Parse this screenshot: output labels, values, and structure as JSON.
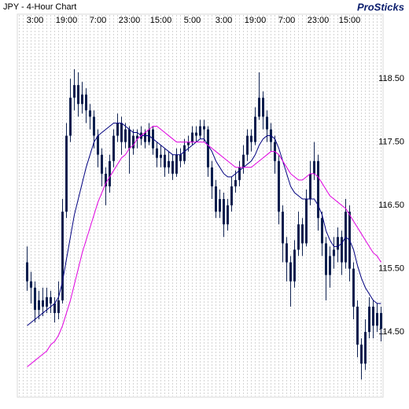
{
  "chart_data": {
    "type": "candlestick",
    "title": "JPY - 4-Hour Chart",
    "source": "ProSticks",
    "categories": [
      null,
      null,
      null,
      null,
      "3:00",
      null,
      null,
      null,
      null,
      null,
      null,
      null,
      "19:00",
      null,
      null,
      null,
      null,
      null,
      null,
      null,
      "7:00",
      null,
      null,
      null,
      null,
      null,
      null,
      null,
      "23:00",
      null,
      null,
      null,
      null,
      null,
      null,
      null,
      "15:00",
      null,
      null,
      null,
      null,
      null,
      null,
      null,
      "5:00",
      null,
      null,
      null,
      null,
      null,
      null,
      null,
      "3:00",
      null,
      null,
      null,
      null,
      null,
      null,
      null,
      "19:00",
      null,
      null,
      null,
      null,
      null,
      null,
      null,
      "7:00",
      null,
      null,
      null,
      null,
      null,
      null,
      null,
      "23:00",
      null,
      null,
      null,
      null,
      null,
      null,
      null,
      "15:00",
      null,
      null,
      null,
      null,
      null,
      null,
      null,
      null
    ],
    "open": [
      null,
      null,
      115.6,
      115.3,
      115.2,
      114.85,
      115.0,
      114.9,
      115.05,
      114.95,
      114.8,
      115.0,
      116.4,
      117.6,
      118.2,
      118.4,
      118.1,
      118.25,
      118.0,
      117.9,
      117.6,
      117.3,
      117.0,
      116.8,
      117.2,
      117.6,
      117.8,
      117.5,
      117.7,
      117.4,
      117.6,
      117.55,
      117.65,
      117.5,
      117.7,
      117.4,
      117.25,
      117.3,
      117.1,
      117.2,
      117.0,
      117.3,
      117.2,
      117.45,
      117.5,
      117.65,
      117.6,
      117.75,
      117.7,
      117.1,
      116.8,
      116.4,
      116.6,
      116.2,
      116.5,
      116.8,
      116.9,
      117.1,
      117.3,
      117.6,
      117.5,
      117.9,
      118.2,
      117.9,
      117.7,
      117.5,
      117.2,
      116.4,
      115.9,
      115.6,
      115.3,
      115.8,
      116.2,
      115.9,
      116.6,
      117.0,
      117.2,
      116.3,
      115.9,
      115.4,
      115.7,
      115.8,
      116.0,
      115.6,
      116.4,
      115.5,
      114.9,
      114.3,
      114.0,
      114.5,
      114.9,
      114.6,
      114.8
    ],
    "high": [
      null,
      null,
      115.85,
      115.45,
      115.3,
      115.15,
      115.2,
      115.2,
      115.15,
      115.05,
      115.3,
      116.6,
      117.8,
      118.5,
      118.65,
      118.6,
      118.45,
      118.35,
      118.1,
      118.0,
      117.7,
      117.4,
      117.1,
      117.3,
      117.7,
      117.95,
      117.9,
      117.8,
      117.75,
      117.7,
      117.7,
      117.75,
      117.7,
      117.8,
      117.75,
      117.5,
      117.45,
      117.4,
      117.35,
      117.3,
      117.4,
      117.4,
      117.55,
      117.6,
      117.75,
      117.75,
      117.85,
      117.85,
      117.75,
      117.2,
      116.9,
      116.75,
      116.7,
      116.6,
      116.95,
      117.05,
      117.2,
      117.45,
      117.7,
      117.7,
      118.05,
      118.6,
      118.3,
      118.0,
      117.8,
      117.6,
      117.3,
      116.5,
      116.0,
      115.7,
      115.95,
      116.4,
      116.3,
      116.75,
      117.2,
      117.5,
      117.3,
      116.4,
      116.0,
      115.85,
      116.0,
      116.15,
      116.1,
      116.6,
      116.5,
      115.6,
      115.0,
      114.4,
      114.7,
      115.05,
      115.0,
      114.95,
      114.9
    ],
    "low": [
      null,
      null,
      115.15,
      114.95,
      114.65,
      114.7,
      114.75,
      114.8,
      114.8,
      114.65,
      114.7,
      114.95,
      116.3,
      117.5,
      118.0,
      117.9,
      117.95,
      117.8,
      117.7,
      117.4,
      117.1,
      116.8,
      116.5,
      116.7,
      117.1,
      117.5,
      117.3,
      117.4,
      117.0,
      117.3,
      117.4,
      117.45,
      117.4,
      117.45,
      117.3,
      117.1,
      117.1,
      116.95,
      117.0,
      116.9,
      116.95,
      117.1,
      117.15,
      117.35,
      117.45,
      117.5,
      117.55,
      117.5,
      116.95,
      116.6,
      116.3,
      116.3,
      116.0,
      116.1,
      116.4,
      116.7,
      116.8,
      117.0,
      117.2,
      117.35,
      117.45,
      117.85,
      117.7,
      117.5,
      117.35,
      117.0,
      116.2,
      115.6,
      115.3,
      114.9,
      115.2,
      115.7,
      115.7,
      115.85,
      116.5,
      116.9,
      116.1,
      115.7,
      115.0,
      115.2,
      115.5,
      115.6,
      115.4,
      115.5,
      115.3,
      114.7,
      114.1,
      113.75,
      113.9,
      114.4,
      114.4,
      114.5,
      114.35
    ],
    "close": [
      null,
      null,
      115.3,
      115.2,
      114.85,
      115.0,
      114.9,
      115.05,
      114.95,
      114.8,
      115.0,
      116.4,
      117.6,
      118.2,
      118.4,
      118.1,
      118.25,
      118.0,
      117.9,
      117.6,
      117.3,
      117.0,
      116.8,
      117.2,
      117.6,
      117.8,
      117.5,
      117.7,
      117.4,
      117.6,
      117.55,
      117.65,
      117.5,
      117.7,
      117.4,
      117.25,
      117.3,
      117.1,
      117.2,
      117.0,
      117.3,
      117.2,
      117.45,
      117.5,
      117.65,
      117.6,
      117.75,
      117.7,
      117.1,
      116.8,
      116.4,
      116.6,
      116.2,
      116.5,
      116.8,
      116.9,
      117.1,
      117.3,
      117.6,
      117.5,
      117.9,
      118.2,
      117.9,
      117.7,
      117.5,
      117.2,
      116.4,
      115.9,
      115.6,
      115.3,
      115.8,
      116.2,
      115.9,
      116.6,
      117.0,
      117.2,
      116.3,
      115.9,
      115.4,
      115.7,
      115.8,
      116.0,
      115.6,
      116.4,
      115.5,
      114.9,
      114.3,
      114.0,
      114.5,
      114.9,
      114.6,
      114.8,
      114.55
    ],
    "color": "#0d1f4e",
    "series": [
      {
        "color": "#00007f",
        "values": [
          null,
          null,
          114.6,
          114.65,
          114.7,
          114.75,
          114.8,
          114.85,
          114.9,
          114.95,
          115.05,
          115.3,
          115.65,
          116.0,
          116.35,
          116.6,
          116.85,
          117.1,
          117.3,
          117.5,
          117.6,
          117.65,
          117.7,
          117.75,
          117.8,
          117.8,
          117.8,
          117.75,
          117.7,
          117.65,
          117.65,
          117.6,
          117.6,
          117.6,
          117.55,
          117.5,
          117.45,
          117.4,
          117.35,
          117.3,
          117.3,
          117.3,
          117.35,
          117.4,
          117.45,
          117.5,
          117.55,
          117.55,
          117.45,
          117.35,
          117.2,
          117.1,
          117.0,
          116.95,
          116.95,
          117.0,
          117.05,
          117.1,
          117.15,
          117.2,
          117.3,
          117.45,
          117.55,
          117.6,
          117.6,
          117.55,
          117.4,
          117.2,
          117.0,
          116.8,
          116.7,
          116.65,
          116.6,
          116.6,
          116.6,
          116.6,
          116.5,
          116.35,
          116.1,
          115.95,
          115.85,
          115.85,
          115.9,
          116.0,
          115.95,
          115.8,
          115.55,
          115.35,
          115.2,
          115.1,
          115.0,
          114.95,
          114.95
        ]
      },
      {
        "color": "#e000e0",
        "values": [
          null,
          null,
          113.95,
          114.0,
          114.05,
          114.1,
          114.15,
          114.2,
          114.3,
          114.35,
          114.45,
          114.6,
          114.8,
          115.0,
          115.25,
          115.5,
          115.75,
          115.95,
          116.15,
          116.35,
          116.55,
          116.7,
          116.85,
          116.95,
          117.05,
          117.15,
          117.25,
          117.3,
          117.4,
          117.45,
          117.55,
          117.6,
          117.65,
          117.7,
          117.75,
          117.75,
          117.7,
          117.65,
          117.6,
          117.55,
          117.5,
          117.5,
          117.5,
          117.5,
          117.5,
          117.5,
          117.5,
          117.5,
          117.45,
          117.4,
          117.35,
          117.3,
          117.25,
          117.2,
          117.15,
          117.1,
          117.1,
          117.1,
          117.1,
          117.1,
          117.15,
          117.2,
          117.25,
          117.3,
          117.35,
          117.35,
          117.3,
          117.2,
          117.1,
          117.0,
          116.95,
          116.9,
          116.9,
          116.95,
          117.0,
          117.0,
          116.95,
          116.85,
          116.75,
          116.65,
          116.6,
          116.55,
          116.5,
          116.45,
          116.35,
          116.25,
          116.15,
          116.05,
          115.95,
          115.85,
          115.75,
          115.7,
          115.6
        ]
      }
    ],
    "ylim": [
      113.47,
      119.52
    ],
    "yticks": [
      {
        "value": 114.5,
        "label": "114.50"
      },
      {
        "value": 115.5,
        "label": "115.50"
      },
      {
        "value": 116.5,
        "label": "116.50"
      },
      {
        "value": 117.5,
        "label": "117.50"
      },
      {
        "value": 118.5,
        "label": "118.50"
      }
    ],
    "grid": "x"
  }
}
